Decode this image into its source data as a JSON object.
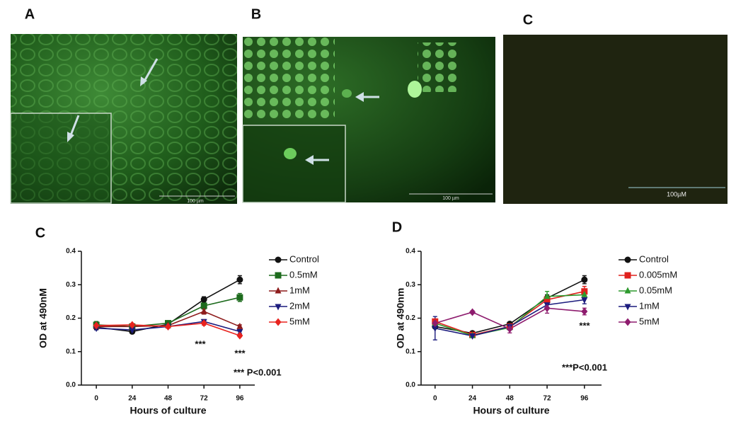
{
  "panels": [
    {
      "label": "A",
      "scale_bar": "100 µm"
    },
    {
      "label": "B",
      "scale_bar": "100 µm"
    },
    {
      "label": "C",
      "scale_bar": "100µM"
    }
  ],
  "chart_data": [
    {
      "type": "line",
      "label": "C",
      "x_label": "Hours of culture",
      "y_label": "OD at 490nM",
      "x": [
        0,
        24,
        48,
        72,
        96
      ],
      "xlim": [
        -10,
        106
      ],
      "xticks": [
        0,
        24,
        48,
        72,
        96
      ],
      "ylim": [
        0,
        0.4
      ],
      "yticks": [
        {
          "value": 0,
          "label": "0.0"
        },
        0.1,
        0.2,
        0.3,
        0.4
      ],
      "annotations": [
        "***",
        "***",
        "*** P<0.001"
      ],
      "series": [
        {
          "name": "Control",
          "color": "#111111",
          "marker": "circle",
          "values": [
            0.173,
            0.16,
            0.182,
            0.256,
            0.315
          ],
          "errors": [
            0.006,
            0.005,
            0.005,
            0.008,
            0.012
          ]
        },
        {
          "name": "0.5mM",
          "color": "#1d6b1d",
          "marker": "square",
          "values": [
            0.18,
            0.175,
            0.185,
            0.237,
            0.262
          ],
          "errors": [
            0.01,
            0.005,
            0.005,
            0.01,
            0.012
          ]
        },
        {
          "name": "1mM",
          "color": "#8e1c1c",
          "marker": "triangle",
          "values": [
            0.175,
            0.175,
            0.178,
            0.22,
            0.175
          ],
          "errors": [
            0.005,
            0.005,
            0.005,
            0.008,
            0.005
          ]
        },
        {
          "name": "2mM",
          "color": "#1c1c7e",
          "marker": "triangle-down",
          "values": [
            0.17,
            0.165,
            0.175,
            0.19,
            0.16
          ],
          "errors": [
            0.005,
            0.005,
            0.005,
            0.006,
            0.006
          ]
        },
        {
          "name": "5mM",
          "color": "#e8231e",
          "marker": "diamond",
          "values": [
            0.178,
            0.18,
            0.175,
            0.185,
            0.148
          ],
          "errors": [
            0.005,
            0.004,
            0.005,
            0.006,
            0.004
          ]
        }
      ]
    },
    {
      "type": "line",
      "label": "D",
      "x_label": "Hours of culture",
      "y_label": "OD at 490nm",
      "x": [
        0,
        24,
        48,
        72,
        96
      ],
      "xlim": [
        -9,
        107
      ],
      "xticks": [
        0,
        24,
        48,
        72,
        96
      ],
      "ylim": [
        0,
        0.4
      ],
      "yticks": [
        {
          "value": 0,
          "label": "0.0"
        },
        0.1,
        0.2,
        0.3,
        0.4
      ],
      "annotations": [
        "***",
        "***P<0.001"
      ],
      "series": [
        {
          "name": "Control",
          "color": "#111111",
          "marker": "circle",
          "values": [
            0.175,
            0.155,
            0.183,
            0.26,
            0.315
          ],
          "errors": [
            0.006,
            0.005,
            0.005,
            0.01,
            0.012
          ]
        },
        {
          "name": "0.005mM",
          "color": "#e0211d",
          "marker": "square",
          "values": [
            0.19,
            0.15,
            0.175,
            0.255,
            0.28
          ],
          "errors": [
            0.006,
            0.005,
            0.006,
            0.012,
            0.015
          ]
        },
        {
          "name": "0.05mM",
          "color": "#2e9a2e",
          "marker": "triangle",
          "values": [
            0.185,
            0.148,
            0.172,
            0.265,
            0.27
          ],
          "errors": [
            0.006,
            0.005,
            0.006,
            0.015,
            0.012
          ]
        },
        {
          "name": "1mM",
          "color": "#1c1c7e",
          "marker": "triangle-down",
          "values": [
            0.17,
            0.147,
            0.175,
            0.24,
            0.255
          ],
          "errors": [
            0.035,
            0.005,
            0.01,
            0.012,
            0.012
          ]
        },
        {
          "name": "5mM",
          "color": "#8e1c6e",
          "marker": "diamond",
          "values": [
            0.185,
            0.218,
            0.168,
            0.23,
            0.22
          ],
          "errors": [
            0.006,
            0.004,
            0.012,
            0.015,
            0.01
          ]
        }
      ]
    }
  ]
}
